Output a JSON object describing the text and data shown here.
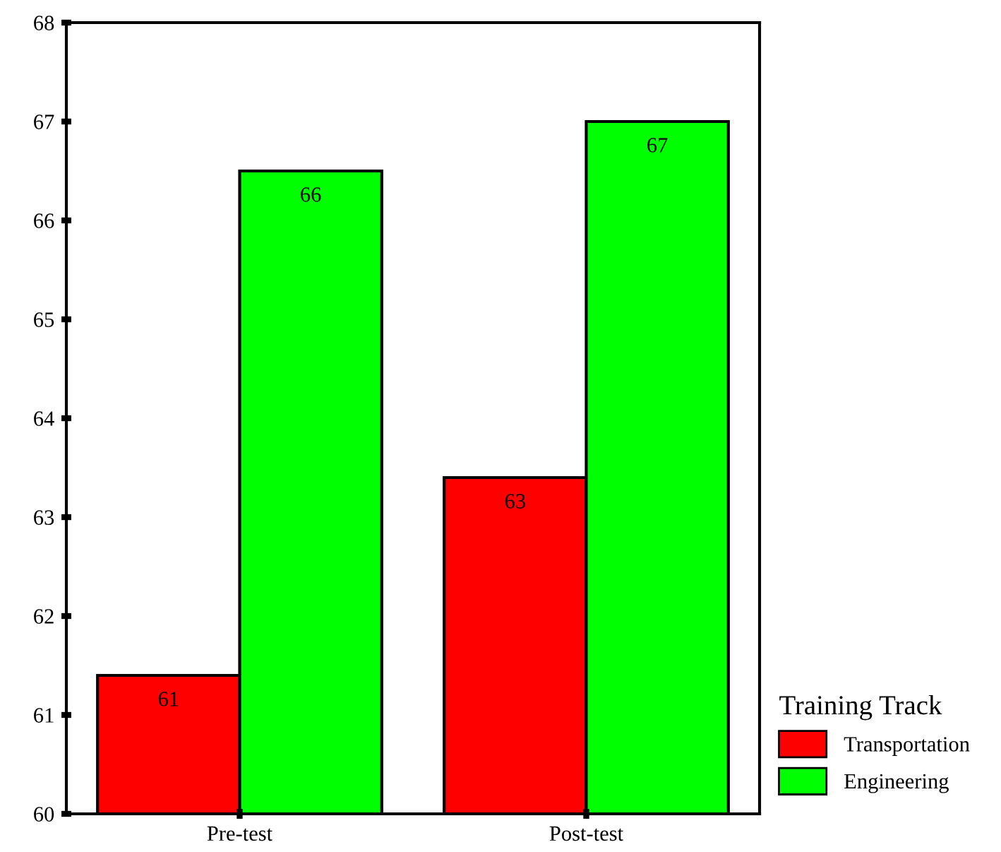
{
  "chart_data": {
    "type": "bar",
    "categories": [
      "Pre-test",
      "Post-test"
    ],
    "series": [
      {
        "name": "Transportation",
        "color": "#ff0000",
        "values": [
          61.4,
          63.4
        ],
        "value_labels": [
          "61",
          "63"
        ]
      },
      {
        "name": "Engineering",
        "color": "#00ff00",
        "values": [
          66.5,
          67.0
        ],
        "value_labels": [
          "66",
          "67"
        ]
      }
    ],
    "legend_title": "Training Track",
    "legend": "bottom right",
    "ylim": [
      60,
      68
    ],
    "yticks": [
      60,
      61,
      62,
      63,
      64,
      65,
      66,
      67,
      68
    ],
    "grid": false
  }
}
